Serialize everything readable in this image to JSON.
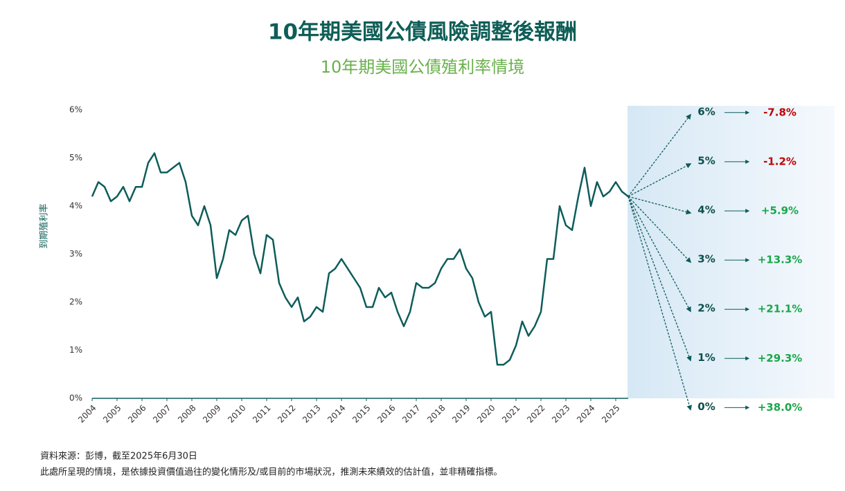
{
  "chart_data": {
    "type": "line",
    "title": "10年期美國公債風險調整後報酬",
    "subtitle": "10年期美國公債殖利率情境",
    "y_label": "到期殖利率",
    "x": [
      2004,
      2004.25,
      2004.5,
      2004.75,
      2005,
      2005.25,
      2005.5,
      2005.75,
      2006,
      2006.25,
      2006.5,
      2006.75,
      2007,
      2007.25,
      2007.5,
      2007.75,
      2008,
      2008.25,
      2008.5,
      2008.75,
      2009,
      2009.25,
      2009.5,
      2009.75,
      2010,
      2010.25,
      2010.5,
      2010.75,
      2011,
      2011.25,
      2011.5,
      2011.75,
      2012,
      2012.25,
      2012.5,
      2012.75,
      2013,
      2013.25,
      2013.5,
      2013.75,
      2014,
      2014.25,
      2014.5,
      2014.75,
      2015,
      2015.25,
      2015.5,
      2015.75,
      2016,
      2016.25,
      2016.5,
      2016.75,
      2017,
      2017.25,
      2017.5,
      2017.75,
      2018,
      2018.25,
      2018.5,
      2018.75,
      2019,
      2019.25,
      2019.5,
      2019.75,
      2020,
      2020.25,
      2020.5,
      2020.75,
      2021,
      2021.25,
      2021.5,
      2021.75,
      2022,
      2022.25,
      2022.5,
      2022.75,
      2023,
      2023.25,
      2023.5,
      2023.75,
      2024,
      2024.25,
      2024.5,
      2024.75,
      2025,
      2025.25,
      2025.5
    ],
    "series": [
      {
        "name": "10年期美國公債殖利率",
        "color": "#0d5c5a",
        "values": [
          4.2,
          4.5,
          4.4,
          4.1,
          4.2,
          4.4,
          4.1,
          4.4,
          4.4,
          4.9,
          5.1,
          4.7,
          4.7,
          4.8,
          4.9,
          4.5,
          3.8,
          3.6,
          4.0,
          3.6,
          2.5,
          2.9,
          3.5,
          3.4,
          3.7,
          3.8,
          3.0,
          2.6,
          3.4,
          3.3,
          2.4,
          2.1,
          1.9,
          2.1,
          1.6,
          1.7,
          1.9,
          1.8,
          2.6,
          2.7,
          2.9,
          2.7,
          2.5,
          2.3,
          1.9,
          1.9,
          2.3,
          2.1,
          2.2,
          1.8,
          1.5,
          1.8,
          2.4,
          2.3,
          2.3,
          2.4,
          2.7,
          2.9,
          2.9,
          3.1,
          2.7,
          2.5,
          2.0,
          1.7,
          1.8,
          0.7,
          0.7,
          0.8,
          1.1,
          1.6,
          1.3,
          1.5,
          1.8,
          2.9,
          2.9,
          4.0,
          3.6,
          3.5,
          4.2,
          4.8,
          4.0,
          4.5,
          4.2,
          4.3,
          4.5,
          4.3,
          4.2
        ]
      }
    ],
    "xlim": [
      2004,
      2025.5
    ],
    "xticks": [
      2004,
      2005,
      2006,
      2007,
      2008,
      2009,
      2010,
      2011,
      2012,
      2013,
      2014,
      2015,
      2016,
      2017,
      2018,
      2019,
      2020,
      2021,
      2022,
      2023,
      2024,
      2025
    ],
    "ylim": [
      0,
      6
    ],
    "yticks": [
      {
        "value": 0,
        "label": "0%"
      },
      {
        "value": 1,
        "label": "1%"
      },
      {
        "value": 2,
        "label": "2%"
      },
      {
        "value": 3,
        "label": "3%"
      },
      {
        "value": 4,
        "label": "4%"
      },
      {
        "value": 5,
        "label": "5%"
      },
      {
        "value": 6,
        "label": "6%"
      }
    ],
    "scenarios": {
      "yields": [
        6,
        5,
        4,
        3,
        2,
        1,
        0
      ],
      "yield_labels": [
        "6%",
        "5%",
        "4%",
        "3%",
        "2%",
        "1%",
        "0%"
      ],
      "returns": [
        -7.8,
        -1.2,
        5.9,
        13.3,
        21.1,
        29.3,
        38.0
      ],
      "return_labels": [
        "-7.8%",
        "-1.2%",
        "+5.9%",
        "+13.3%",
        "+21.1%",
        "+29.3%",
        "+38.0%"
      ],
      "negative_color": "#c00000",
      "positive_color": "#1aa64a"
    },
    "notes": [
      "資料來源：彭博，截至2025年6月30日",
      "此處所呈現的情境，是依據投資價值過往的變化情形及/或目前的市場狀況，推測未來績效的估計值，並非精確指標。"
    ]
  }
}
